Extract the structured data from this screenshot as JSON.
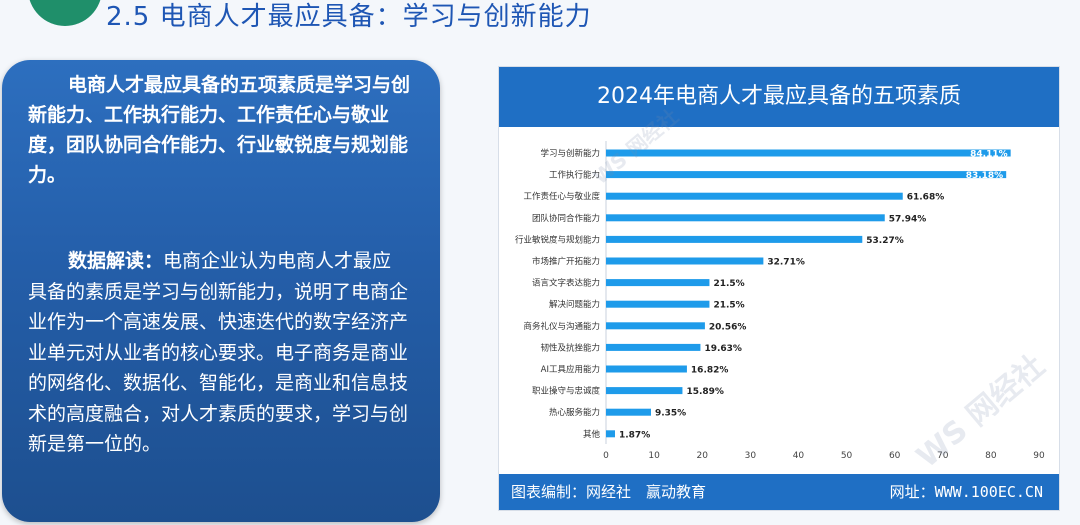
{
  "page": {
    "title": "2.5 电商人才最应具备：学习与创新能力"
  },
  "left_panel": {
    "summary": "电商人才最应具备的五项素质是学习与创新能力、工作执行能力、工作责任心与敬业度，团队协同合作能力、行业敏锐度与规划能力。",
    "interpretation_label": "数据解读：",
    "interpretation_text": "电商企业认为电商人才最应具备的素质是学习与创新能力，说明了电商企业作为一个高速发展、快速迭代的数字经济产业单元对从业者的核心要求。电子商务是商业的网络化、数据化、智能化，是商业和信息技术的高度融合，对人才素质的要求，学习与创新是第一位的。"
  },
  "chart_header": "2024年电商人才最应具备的五项素质",
  "footer": {
    "left": "图表编制：网经社　赢动教育",
    "right": "网址：WWW.100EC.CN"
  },
  "watermark": {
    "brand": "网经社",
    "brand_mark": "WS"
  },
  "colors": {
    "accent": "#1f6fc4",
    "bar": "#1e9bea",
    "panel": "#245ea9",
    "title": "#1e56b4"
  },
  "chart_data": {
    "type": "bar",
    "orientation": "horizontal",
    "title": "2024年电商人才最应具备的五项素质",
    "categories": [
      "学习与创新能力",
      "工作执行能力",
      "工作责任心与敬业度",
      "团队协同合作能力",
      "行业敏锐度与规划能力",
      "市场推广开拓能力",
      "语言文字表达能力",
      "解决问题能力",
      "商务礼仪与沟通能力",
      "韧性及抗挫能力",
      "AI工具应用能力",
      "职业操守与忠诚度",
      "热心服务能力",
      "其他"
    ],
    "values": [
      84.11,
      83.18,
      61.68,
      57.94,
      53.27,
      32.71,
      21.5,
      21.5,
      20.56,
      19.63,
      16.82,
      15.89,
      9.35,
      1.87
    ],
    "labels": [
      "84.11%",
      "83.18%",
      "61.68%",
      "57.94%",
      "53.27%",
      "32.71%",
      "21.5%",
      "21.5%",
      "20.56%",
      "19.63%",
      "16.82%",
      "15.89%",
      "9.35%",
      "1.87%"
    ],
    "xlim": [
      0,
      90
    ],
    "xticks": [
      0,
      10,
      20,
      30,
      40,
      50,
      60,
      70,
      80,
      90
    ],
    "grid": false,
    "legend": "none"
  }
}
